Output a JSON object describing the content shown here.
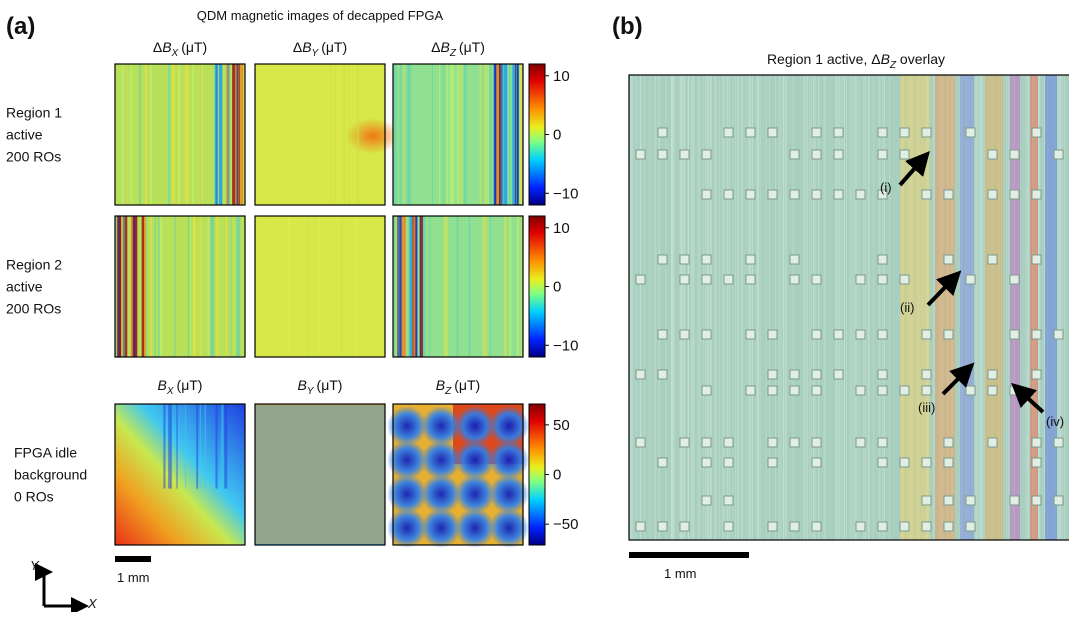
{
  "panel_a": {
    "label": "(a)",
    "title": "QDM magnetic images of decapped FPGA",
    "delta_headers": [
      {
        "prefix": "Δ",
        "symbol": "B",
        "sub": "X",
        "unit": "(μT)"
      },
      {
        "prefix": "Δ",
        "symbol": "B",
        "sub": "Y",
        "unit": "(μT)"
      },
      {
        "prefix": "Δ",
        "symbol": "B",
        "sub": "Z",
        "unit": "(μT)"
      }
    ],
    "field_headers": [
      {
        "symbol": "B",
        "sub": "X",
        "unit": "(μT)"
      },
      {
        "symbol": "B",
        "sub": "Y",
        "unit": "(μT)"
      },
      {
        "symbol": "B",
        "sub": "Z",
        "unit": "(μT)"
      }
    ],
    "rows": [
      {
        "label_lines": [
          "Region 1",
          "active",
          "200 ROs"
        ],
        "colorbar": {
          "lim": [
            -12,
            12
          ],
          "ticks": [
            10,
            0,
            {
              "value": -10,
              "label": "−10"
            }
          ]
        }
      },
      {
        "label_lines": [
          "Region 2",
          "active",
          "200 ROs"
        ],
        "colorbar": {
          "lim": [
            -12,
            12
          ],
          "ticks": [
            10,
            0,
            {
              "value": -10,
              "label": "−10"
            }
          ]
        }
      },
      {
        "label_lines": [
          "FPGA idle",
          "background",
          "0 ROs"
        ],
        "colorbar": {
          "lim": [
            -71,
            71
          ],
          "ticks": [
            50,
            0,
            {
              "value": -50,
              "label": "−50"
            }
          ]
        }
      }
    ],
    "scale_bar": "1 mm",
    "axes": {
      "y": "Y",
      "x": "X"
    }
  },
  "panel_b": {
    "label": "(b)",
    "title": {
      "prefix": "Region 1 active, Δ",
      "symbol": "B",
      "sub": "Z",
      "suffix": " overlay"
    },
    "annotations": [
      "(i)",
      "(ii)",
      "(iii)",
      "(iv)"
    ],
    "scale_bar": "1 mm"
  }
}
